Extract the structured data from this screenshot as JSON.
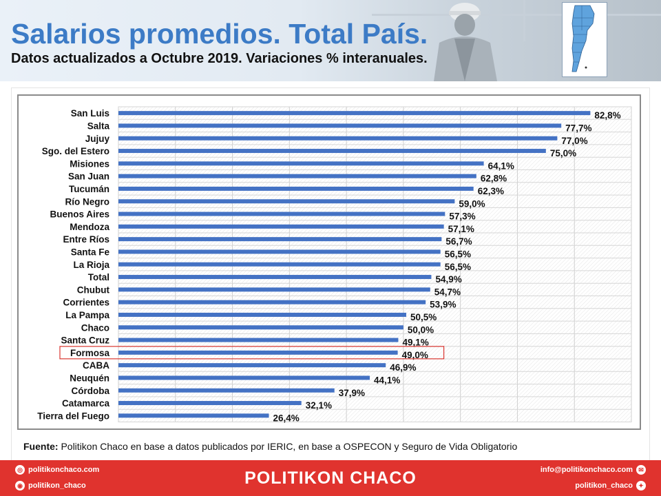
{
  "header": {
    "title": "Salarios promedios. Total País.",
    "subtitle": "Datos actualizados a Octubre 2019. Variaciones % interanuales."
  },
  "source": {
    "label": "Fuente:",
    "text": " Politikon Chaco en base a datos publicados por IERIC,  en base a OSPECON y Seguro de Vida Obligatorio"
  },
  "footer": {
    "brand": "POLITIKON CHACO",
    "web": "politikonchaco.com",
    "instagram": "politikon_chaco",
    "email": "info@politikonchaco.com",
    "twitter": "politikon_chaco"
  },
  "colors": {
    "bar": "#4472c4",
    "accent": "#3c7bc6",
    "footer": "#e0332e",
    "highlight": "#d9352f"
  },
  "chart_data": {
    "type": "bar",
    "orientation": "horizontal",
    "categories": [
      "San Luis",
      "Salta",
      "Jujuy",
      "Sgo. del Estero",
      "Misiones",
      "San Juan",
      "Tucumán",
      "Río Negro",
      "Buenos Aires",
      "Mendoza",
      "Entre Ríos",
      "Santa Fe",
      "La Rioja",
      "Total",
      "Chubut",
      "Corrientes",
      "La Pampa",
      "Chaco",
      "Santa Cruz",
      "Formosa",
      "CABA",
      "Neuquén",
      "Córdoba",
      "Catamarca",
      "Tierra del Fuego"
    ],
    "values": [
      82.8,
      77.7,
      77.0,
      75.0,
      64.1,
      62.8,
      62.3,
      59.0,
      57.3,
      57.1,
      56.7,
      56.5,
      56.5,
      54.9,
      54.7,
      53.9,
      50.5,
      50.0,
      49.1,
      49.0,
      46.9,
      44.1,
      37.9,
      32.1,
      26.4
    ],
    "data_labels": [
      "82,8%",
      "77,7%",
      "77,0%",
      "75,0%",
      "64,1%",
      "62,8%",
      "62,3%",
      "59,0%",
      "57,3%",
      "57,1%",
      "56,7%",
      "56,5%",
      "56,5%",
      "54,9%",
      "54,7%",
      "53,9%",
      "50,5%",
      "50,0%",
      "49,1%",
      "49,0%",
      "46,9%",
      "44,1%",
      "37,9%",
      "32,1%",
      "26,4%"
    ],
    "highlighted_category": "Formosa",
    "xlim": [
      0,
      90
    ],
    "grid": true,
    "legend": "none"
  }
}
